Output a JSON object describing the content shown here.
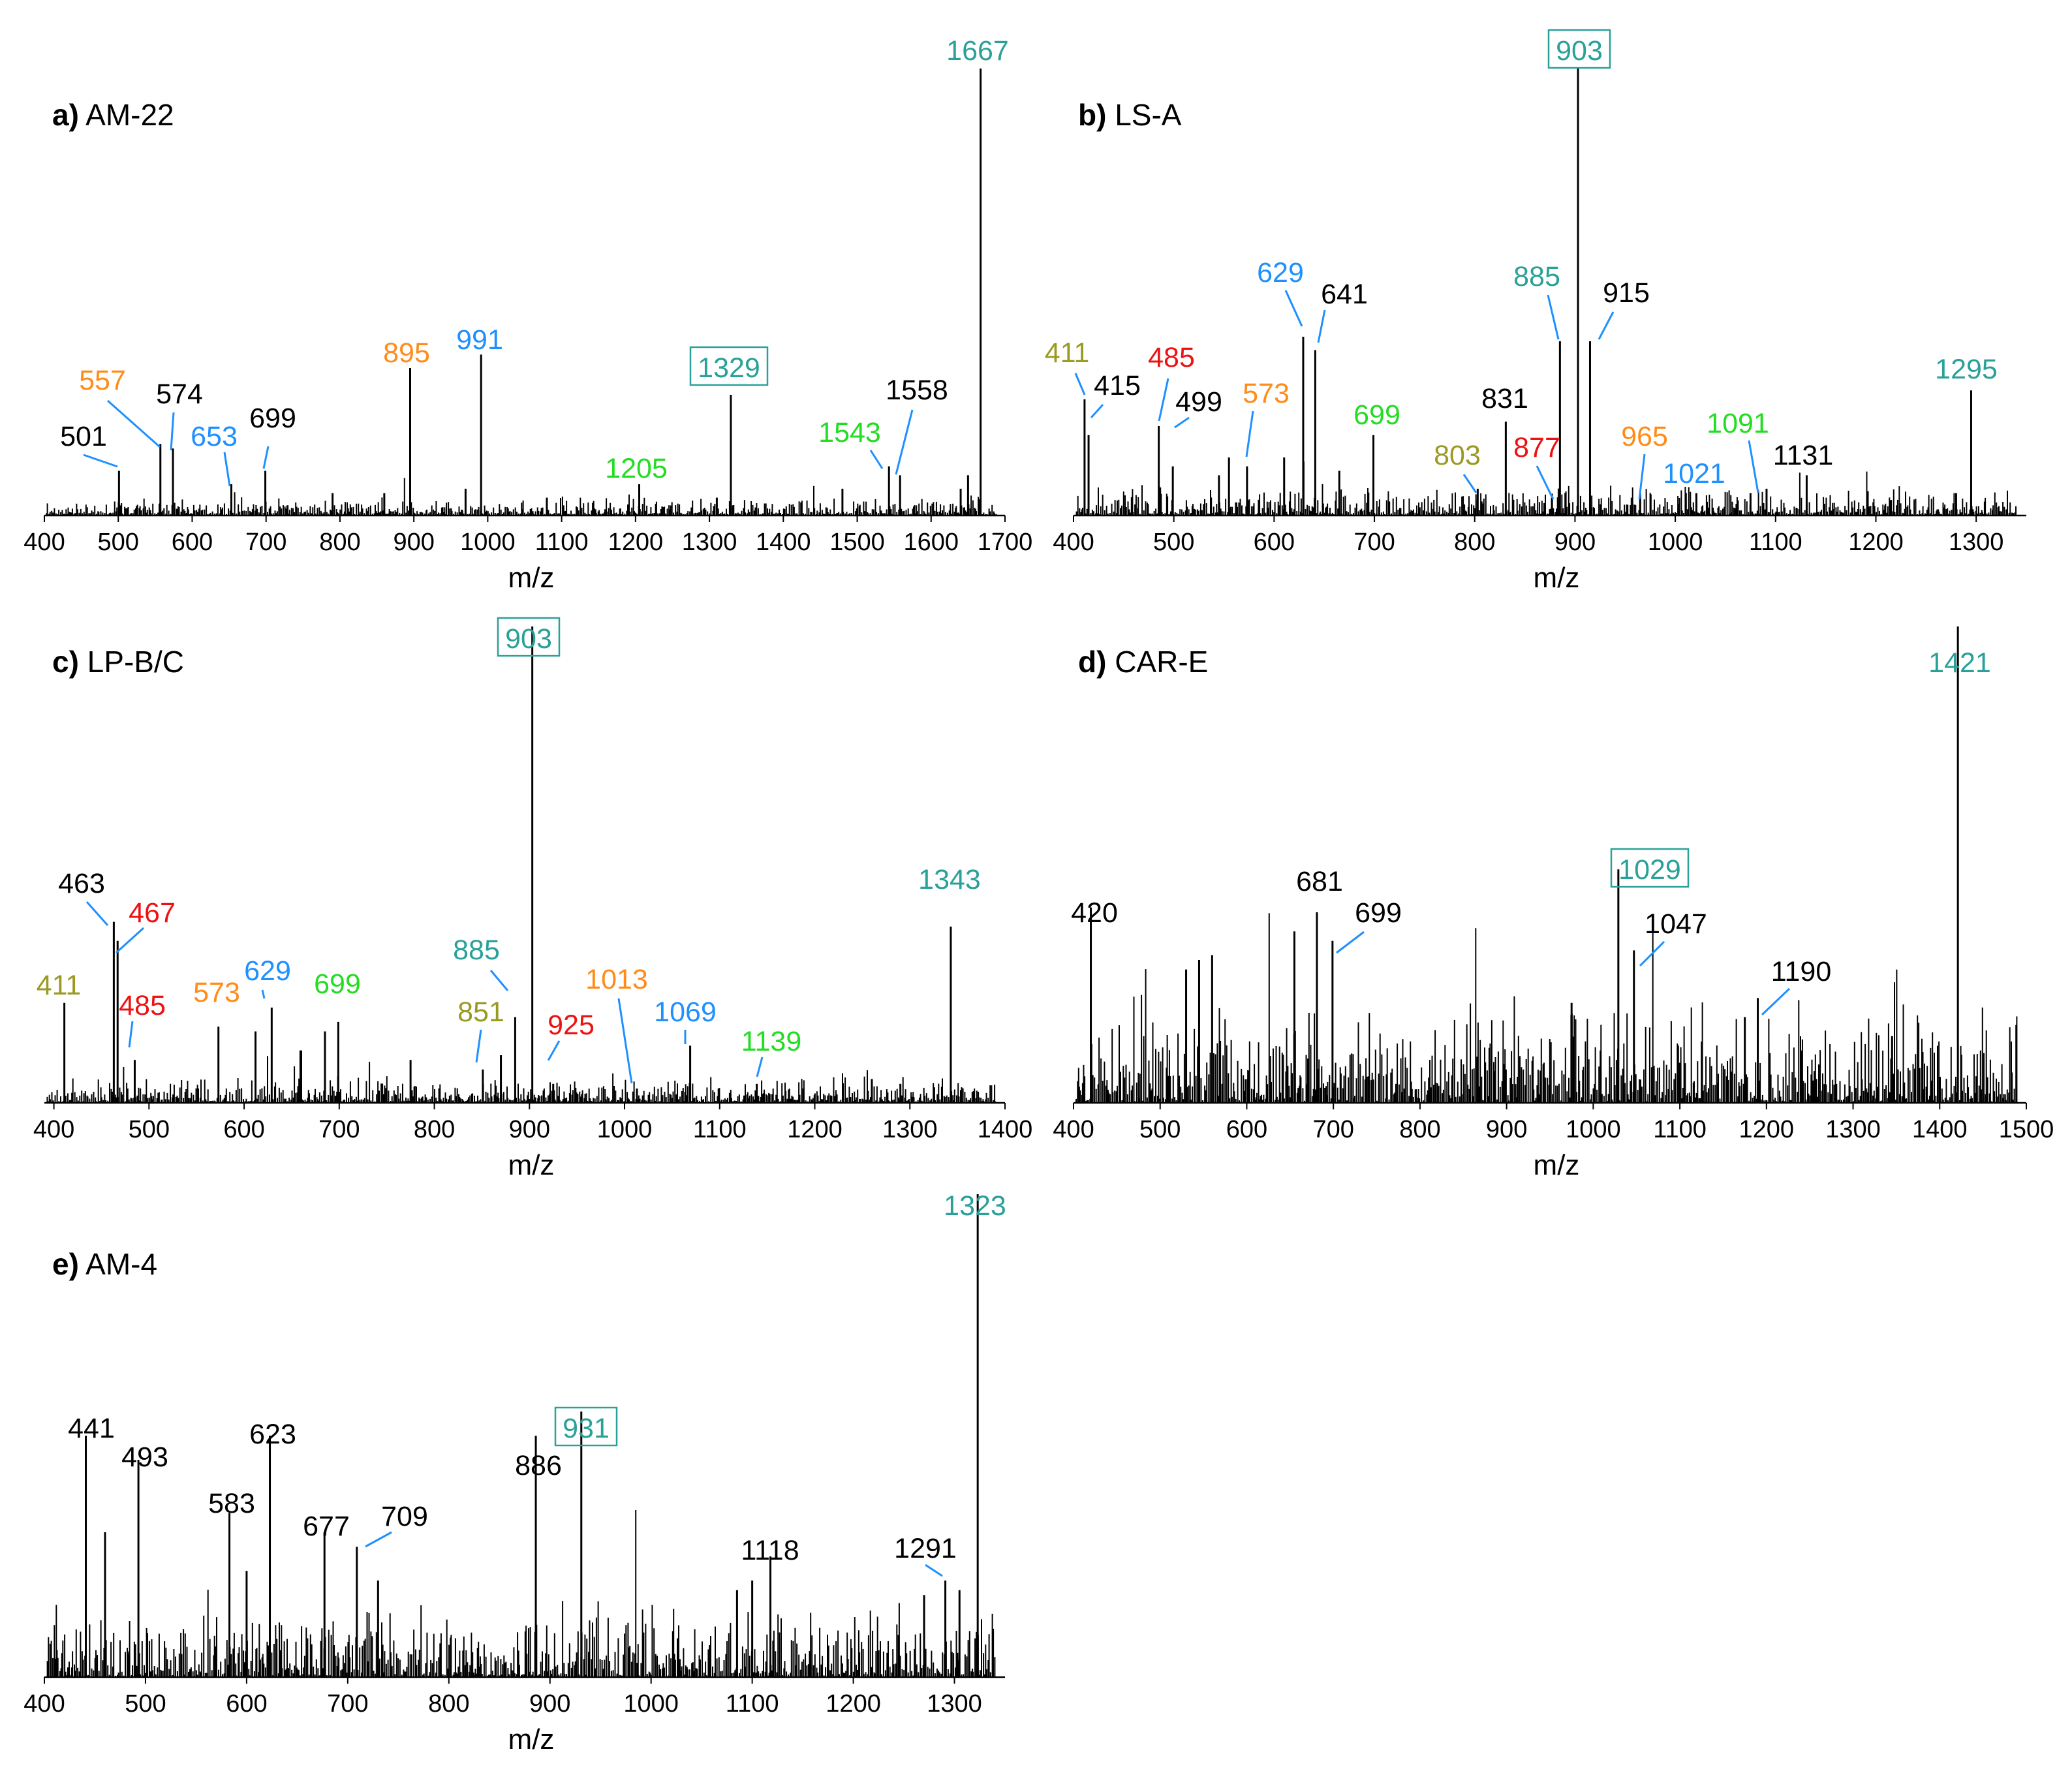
{
  "figure": {
    "xlabel": "m/z"
  },
  "colors": {
    "black": "#000000",
    "teal": "#2aa198",
    "orange": "#ff8c1a",
    "blue": "#1e90ff",
    "green": "#22dd22",
    "red": "#ee1111",
    "olive": "#9a9a22"
  },
  "chart_data": [
    {
      "type": "bar",
      "id": "a",
      "letter": "a)",
      "title": "AM-22",
      "xlabel": "m/z",
      "xlim": [
        400,
        1700
      ],
      "xticks": [
        400,
        500,
        600,
        700,
        800,
        900,
        1000,
        1100,
        1200,
        1300,
        1400,
        1500,
        1600,
        1700
      ],
      "ylim": [
        0,
        100
      ],
      "noise_max": 4,
      "noise_seed": 11,
      "peaks": [
        {
          "mz": 1667,
          "rel": 100,
          "label": "1667",
          "color": "teal"
        },
        {
          "mz": 1329,
          "rel": 27,
          "label": "1329",
          "color": "teal",
          "boxed": true
        },
        {
          "mz": 991,
          "rel": 36,
          "label": "991",
          "color": "blue"
        },
        {
          "mz": 895,
          "rel": 33,
          "label": "895",
          "color": "orange"
        },
        {
          "mz": 699,
          "rel": 10,
          "label": "699",
          "color": "black"
        },
        {
          "mz": 653,
          "rel": 7,
          "label": "653",
          "color": "blue"
        },
        {
          "mz": 574,
          "rel": 15,
          "label": "574",
          "color": "black"
        },
        {
          "mz": 557,
          "rel": 16,
          "label": "557",
          "color": "orange"
        },
        {
          "mz": 501,
          "rel": 10,
          "label": "501",
          "color": "black"
        },
        {
          "mz": 1205,
          "rel": 7,
          "label": "1205",
          "color": "green"
        },
        {
          "mz": 1543,
          "rel": 11,
          "label": "1543",
          "color": "green"
        },
        {
          "mz": 1558,
          "rel": 9,
          "label": "1558",
          "color": "black"
        },
        {
          "mz": 1650,
          "rel": 9
        },
        {
          "mz": 1640,
          "rel": 6
        },
        {
          "mz": 1480,
          "rel": 6
        },
        {
          "mz": 1310,
          "rel": 4
        },
        {
          "mz": 1080,
          "rel": 4
        },
        {
          "mz": 970,
          "rel": 6
        },
        {
          "mz": 860,
          "rel": 5
        },
        {
          "mz": 790,
          "rel": 5
        }
      ]
    },
    {
      "type": "bar",
      "id": "b",
      "letter": "b)",
      "title": "LS-A",
      "xlabel": "m/z",
      "xlim": [
        400,
        1350
      ],
      "xticks": [
        400,
        500,
        600,
        700,
        800,
        900,
        1000,
        1100,
        1200,
        1300
      ],
      "ylim": [
        0,
        100
      ],
      "noise_max": 7,
      "noise_seed": 23,
      "peaks": [
        {
          "mz": 903,
          "rel": 100,
          "label": "903",
          "color": "teal",
          "boxed": true
        },
        {
          "mz": 915,
          "rel": 39,
          "label": "915",
          "color": "black"
        },
        {
          "mz": 885,
          "rel": 39,
          "label": "885",
          "color": "teal"
        },
        {
          "mz": 641,
          "rel": 37,
          "label": "641",
          "color": "black"
        },
        {
          "mz": 629,
          "rel": 40,
          "label": "629",
          "color": "blue"
        },
        {
          "mz": 1295,
          "rel": 28,
          "label": "1295",
          "color": "teal"
        },
        {
          "mz": 831,
          "rel": 21,
          "label": "831",
          "color": "black"
        },
        {
          "mz": 699,
          "rel": 18,
          "label": "699",
          "color": "green"
        },
        {
          "mz": 573,
          "rel": 11,
          "label": "573",
          "color": "orange"
        },
        {
          "mz": 499,
          "rel": 11,
          "label": "499",
          "color": "black"
        },
        {
          "mz": 485,
          "rel": 20,
          "label": "485",
          "color": "red"
        },
        {
          "mz": 415,
          "rel": 18,
          "label": "415",
          "color": "black"
        },
        {
          "mz": 411,
          "rel": 26,
          "label": "411",
          "color": "olive"
        },
        {
          "mz": 803,
          "rel": 6,
          "label": "803",
          "color": "olive"
        },
        {
          "mz": 877,
          "rel": 4,
          "label": "877",
          "color": "red"
        },
        {
          "mz": 965,
          "rel": 5,
          "label": "965",
          "color": "orange"
        },
        {
          "mz": 1021,
          "rel": 5,
          "label": "1021",
          "color": "blue"
        },
        {
          "mz": 1091,
          "rel": 6,
          "label": "1091",
          "color": "green"
        },
        {
          "mz": 1131,
          "rel": 9,
          "label": "1131",
          "color": "black"
        },
        {
          "mz": 610,
          "rel": 13
        },
        {
          "mz": 555,
          "rel": 13
        },
        {
          "mz": 665,
          "rel": 10
        },
        {
          "mz": 545,
          "rel": 9
        },
        {
          "mz": 1075,
          "rel": 5
        },
        {
          "mz": 1280,
          "rel": 5
        }
      ]
    },
    {
      "type": "bar",
      "id": "c",
      "letter": "c)",
      "title": "LP-B/C",
      "xlabel": "m/z",
      "xlim": [
        390,
        1400
      ],
      "xticks": [
        400,
        500,
        600,
        700,
        800,
        900,
        1000,
        1100,
        1200,
        1300,
        1400
      ],
      "ylim": [
        0,
        100
      ],
      "noise_max": 6,
      "noise_seed": 37,
      "peaks": [
        {
          "mz": 903,
          "rel": 100,
          "label": "903",
          "color": "teal",
          "boxed": true
        },
        {
          "mz": 1343,
          "rel": 37,
          "label": "1343",
          "color": "teal"
        },
        {
          "mz": 463,
          "rel": 38,
          "label": "463",
          "color": "black"
        },
        {
          "mz": 467,
          "rel": 34,
          "label": "467",
          "color": "red"
        },
        {
          "mz": 411,
          "rel": 21,
          "label": "411",
          "color": "olive"
        },
        {
          "mz": 485,
          "rel": 9,
          "label": "485",
          "color": "red"
        },
        {
          "mz": 573,
          "rel": 16,
          "label": "573",
          "color": "orange"
        },
        {
          "mz": 629,
          "rel": 20,
          "label": "629",
          "color": "blue"
        },
        {
          "mz": 699,
          "rel": 17,
          "label": "699",
          "color": "green"
        },
        {
          "mz": 885,
          "rel": 18,
          "label": "885",
          "color": "teal"
        },
        {
          "mz": 851,
          "rel": 7,
          "label": "851",
          "color": "olive"
        },
        {
          "mz": 925,
          "rel": 4,
          "label": "925",
          "color": "red"
        },
        {
          "mz": 1013,
          "rel": 3,
          "label": "1013",
          "color": "orange"
        },
        {
          "mz": 1069,
          "rel": 12,
          "label": "1069",
          "color": "blue"
        },
        {
          "mz": 1139,
          "rel": 4,
          "label": "1139",
          "color": "green"
        },
        {
          "mz": 612,
          "rel": 15
        },
        {
          "mz": 685,
          "rel": 15
        },
        {
          "mz": 660,
          "rel": 11
        },
        {
          "mz": 775,
          "rel": 9
        },
        {
          "mz": 870,
          "rel": 10
        },
        {
          "mz": 1260,
          "rel": 5
        },
        {
          "mz": 1290,
          "rel": 4
        }
      ]
    },
    {
      "type": "bar",
      "id": "d",
      "letter": "d)",
      "title": "CAR-E",
      "xlabel": "m/z",
      "xlim": [
        400,
        1500
      ],
      "xticks": [
        400,
        500,
        600,
        700,
        800,
        900,
        1000,
        1100,
        1200,
        1300,
        1400,
        1500
      ],
      "ylim": [
        0,
        100
      ],
      "noise_max": 24,
      "noise_seed": 53,
      "peaks": [
        {
          "mz": 1421,
          "rel": 100,
          "label": "1421",
          "color": "teal"
        },
        {
          "mz": 1029,
          "rel": 49,
          "label": "1029",
          "color": "teal",
          "boxed": true
        },
        {
          "mz": 1047,
          "rel": 32,
          "label": "1047",
          "color": "black"
        },
        {
          "mz": 681,
          "rel": 40,
          "label": "681",
          "color": "black"
        },
        {
          "mz": 699,
          "rel": 34,
          "label": "699",
          "color": "black"
        },
        {
          "mz": 420,
          "rel": 41,
          "label": "420",
          "color": "black"
        },
        {
          "mz": 1190,
          "rel": 22,
          "label": "1190",
          "color": "black"
        },
        {
          "mz": 655,
          "rel": 36
        },
        {
          "mz": 560,
          "rel": 31
        },
        {
          "mz": 545,
          "rel": 30
        },
        {
          "mz": 530,
          "rel": 28
        },
        {
          "mz": 975,
          "rel": 21
        },
        {
          "mz": 1175,
          "rel": 18
        },
        {
          "mz": 1240,
          "rel": 11
        },
        {
          "mz": 1345,
          "rel": 14
        }
      ]
    },
    {
      "type": "bar",
      "id": "e",
      "letter": "e)",
      "title": "AM-4",
      "xlabel": "m/z",
      "xlim": [
        400,
        1350
      ],
      "xticks": [
        400,
        500,
        600,
        700,
        800,
        900,
        1000,
        1100,
        1200,
        1300
      ],
      "ylim": [
        0,
        100
      ],
      "noise_max": 16,
      "noise_seed": 71,
      "peaks": [
        {
          "mz": 1323,
          "rel": 100,
          "label": "1323",
          "color": "teal"
        },
        {
          "mz": 931,
          "rel": 55,
          "label": "931",
          "color": "teal",
          "boxed": true
        },
        {
          "mz": 886,
          "rel": 50,
          "label": "886",
          "color": "black"
        },
        {
          "mz": 441,
          "rel": 50,
          "label": "441",
          "color": "black"
        },
        {
          "mz": 493,
          "rel": 45,
          "label": "493",
          "color": "black"
        },
        {
          "mz": 623,
          "rel": 50,
          "label": "623",
          "color": "black"
        },
        {
          "mz": 583,
          "rel": 34,
          "label": "583",
          "color": "black"
        },
        {
          "mz": 677,
          "rel": 30,
          "label": "677",
          "color": "black"
        },
        {
          "mz": 709,
          "rel": 27,
          "label": "709",
          "color": "black"
        },
        {
          "mz": 1118,
          "rel": 25,
          "label": "1118",
          "color": "black"
        },
        {
          "mz": 1291,
          "rel": 20,
          "label": "1291",
          "color": "black"
        },
        {
          "mz": 460,
          "rel": 30
        },
        {
          "mz": 600,
          "rel": 22
        },
        {
          "mz": 1100,
          "rel": 20
        },
        {
          "mz": 1270,
          "rel": 17
        },
        {
          "mz": 1305,
          "rel": 18
        },
        {
          "mz": 1085,
          "rel": 18
        },
        {
          "mz": 730,
          "rel": 20
        }
      ]
    }
  ]
}
